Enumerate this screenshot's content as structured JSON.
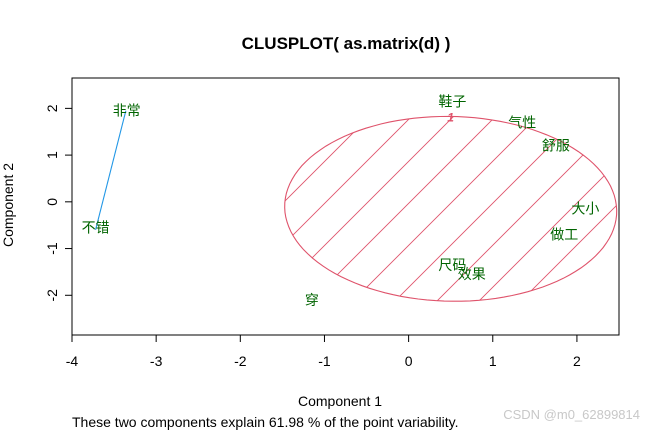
{
  "chart_data": {
    "type": "scatter",
    "title": "CLUSPLOT( as.matrix(d) )",
    "subtitle": "These two components explain 61.98 % of the point variability.",
    "xlabel": "Component 1",
    "ylabel": "Component 2",
    "xlim": [
      -4,
      2.5
    ],
    "ylim": [
      -2.85,
      2.65
    ],
    "xticks": [
      "-4",
      "-3",
      "-2",
      "-1",
      "0",
      "1",
      "2"
    ],
    "yticks": [
      "-2",
      "-1",
      "0",
      "1",
      "2"
    ],
    "grid": false,
    "points": [
      {
        "label": "非常",
        "x": -3.35,
        "y": 1.95,
        "cluster": 2
      },
      {
        "label": "不错",
        "x": -3.72,
        "y": -0.55,
        "cluster": 2
      },
      {
        "label": "鞋子",
        "x": 0.52,
        "y": 2.15,
        "cluster": 1
      },
      {
        "label": "气性",
        "x": 1.35,
        "y": 1.7,
        "cluster": 1
      },
      {
        "label": "舒服",
        "x": 1.75,
        "y": 1.2,
        "cluster": 1
      },
      {
        "label": "大小",
        "x": 2.1,
        "y": -0.15,
        "cluster": 1
      },
      {
        "label": "做工",
        "x": 1.85,
        "y": -0.7,
        "cluster": 1
      },
      {
        "label": "尺码",
        "x": 0.52,
        "y": -1.35,
        "cluster": 1
      },
      {
        "label": "效果",
        "x": 0.75,
        "y": -1.55,
        "cluster": 1
      },
      {
        "label": "穿",
        "x": -1.15,
        "y": -2.1,
        "cluster": 1
      }
    ],
    "clusters": [
      {
        "id": 1,
        "label": "1",
        "shape": "ellipse",
        "color": "#DF536B",
        "fill": "hatched",
        "center": [
          0.5,
          -0.15
        ],
        "semi_axes": [
          1.95,
          2.0
        ],
        "rotation_deg": 42
      },
      {
        "id": 2,
        "label": "",
        "shape": "segment",
        "color": "#2297E6",
        "from": [
          -3.36,
          1.95
        ],
        "to": [
          -3.72,
          -0.6
        ]
      }
    ]
  },
  "watermark": "CSDN @m0_62899814"
}
